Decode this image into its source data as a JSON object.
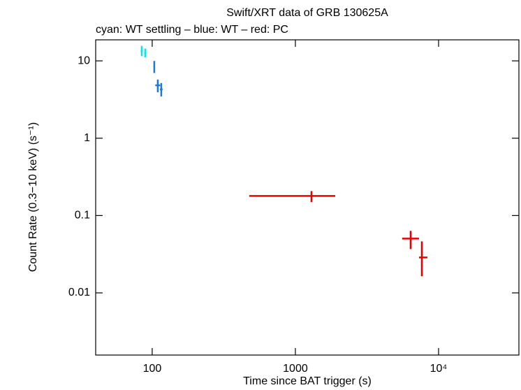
{
  "chart_data": {
    "type": "scatter",
    "title": "Swift/XRT data of GRB 130625A",
    "subtitle": "cyan: WT settling – blue: WT – red: PC",
    "x_label": "Time since BAT trigger (s)",
    "y_label": "Count Rate (0.3−10 keV) (s⁻¹)",
    "x_log": true,
    "y_log": true,
    "xlim": [
      40.3,
      36400
    ],
    "ylim": [
      0.00157,
      18.7
    ],
    "xticks": [
      100,
      1000,
      {
        "value": 10000,
        "label": "10⁴"
      }
    ],
    "yticks": [
      0.01,
      0.1,
      1,
      10
    ],
    "series": [
      {
        "color": "#00e8e8",
        "x": [
          84.5,
          89.4
        ],
        "x_err_minus": [
          1.5,
          1.5
        ],
        "x_err_plus": [
          1.5,
          1.5
        ],
        "values": [
          13.4,
          12.6
        ],
        "y_err_minus": [
          1.9,
          1.5
        ],
        "y_err_plus": [
          2.2,
          1.8
        ]
      },
      {
        "color": "#1e78dc",
        "x": [
          103.4,
          109.4,
          115.7
        ],
        "x_err_minus": [
          1.2,
          4.3,
          2.5
        ],
        "x_err_plus": [
          1.2,
          4.3,
          2.5
        ],
        "values": [
          8.47,
          4.83,
          4.27
        ],
        "y_err_minus": [
          1.5,
          0.9,
          0.8
        ],
        "y_err_plus": [
          1.5,
          0.9,
          0.9
        ]
      },
      {
        "color": "#e60000",
        "x": [
          1295,
          6380,
          7640
        ],
        "x_err_minus": [
          819,
          810,
          340
        ],
        "x_err_plus": [
          602,
          920,
          710
        ],
        "values": [
          0.179,
          0.0503,
          0.0287
        ],
        "y_err_minus": [
          0.03,
          0.0135,
          0.0123
        ],
        "y_err_plus": [
          0.028,
          0.013,
          0.0176
        ]
      }
    ]
  }
}
